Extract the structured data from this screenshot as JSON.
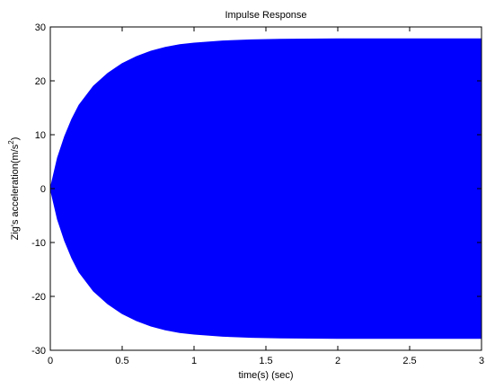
{
  "chart_data": {
    "type": "line",
    "title": "Impulse Response",
    "xlabel": "time(s) (sec)",
    "ylabel": "Zig's acceleration(m/s",
    "ylabel_superscript": "2",
    "ylabel_suffix": ")",
    "xlim": [
      0,
      3
    ],
    "ylim": [
      -30,
      30
    ],
    "xticks": [
      0,
      0.5,
      1,
      1.5,
      2,
      2.5,
      3
    ],
    "xtick_labels": [
      "0",
      "0.5",
      "1",
      "1.5",
      "2",
      "2.5",
      "3"
    ],
    "yticks": [
      -30,
      -20,
      -10,
      0,
      10,
      20,
      30
    ],
    "ytick_labels": [
      "-30",
      "-20",
      "-10",
      "0",
      "10",
      "20",
      "30"
    ],
    "grid": false,
    "series": [
      {
        "color": "#0000ff",
        "envelope": {
          "x": [
            0,
            0.05,
            0.1,
            0.15,
            0.2,
            0.3,
            0.4,
            0.5,
            0.6,
            0.7,
            0.8,
            0.9,
            1.0,
            1.2,
            1.4,
            1.6,
            2.0,
            2.5,
            3.0
          ],
          "upper": [
            0,
            5.7,
            9.7,
            12.9,
            15.5,
            19.0,
            21.4,
            23.2,
            24.5,
            25.5,
            26.2,
            26.7,
            27.0,
            27.4,
            27.6,
            27.7,
            27.8,
            27.8,
            27.8
          ],
          "lower": [
            0,
            -5.7,
            -9.7,
            -12.9,
            -15.5,
            -19.0,
            -21.4,
            -23.2,
            -24.5,
            -25.5,
            -26.2,
            -26.7,
            -27.0,
            -27.4,
            -27.6,
            -27.7,
            -27.8,
            -27.8,
            -27.8
          ]
        }
      }
    ]
  }
}
